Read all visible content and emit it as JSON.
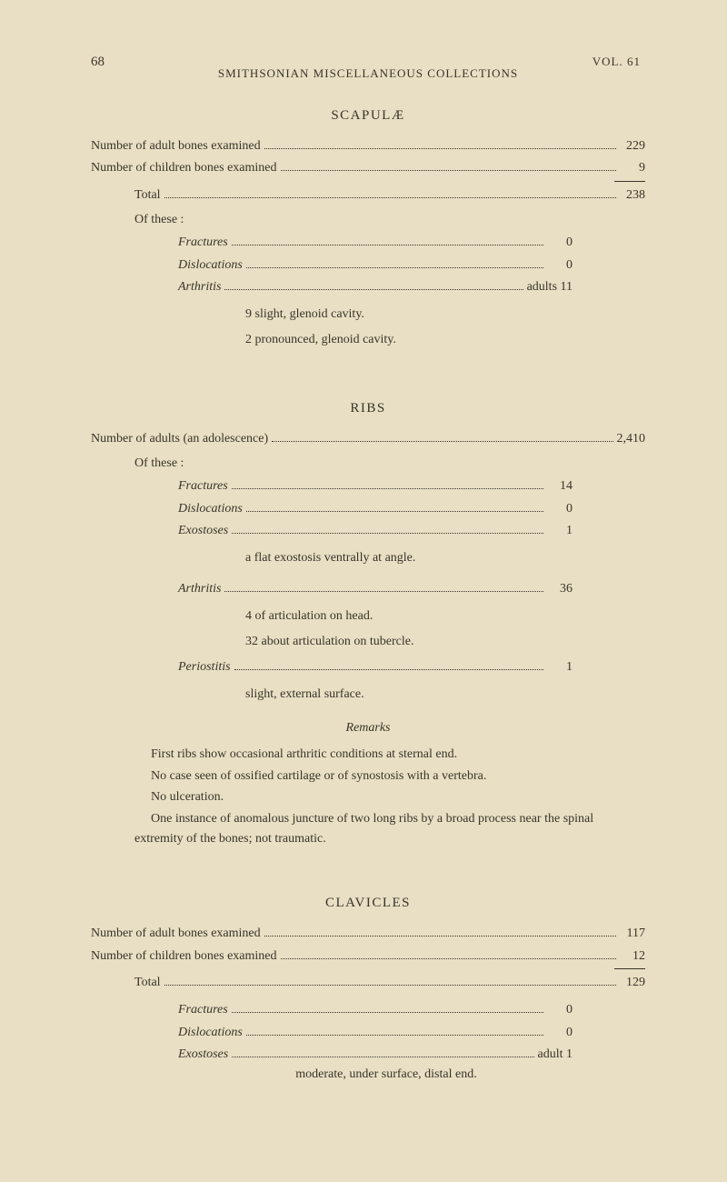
{
  "header": {
    "page_number": "68",
    "running_title": "SMITHSONIAN MISCELLANEOUS COLLECTIONS",
    "vol": "VOL. 61"
  },
  "scapulae": {
    "title": "SCAPULÆ",
    "adult_label": "Number of adult bones examined",
    "adult_value": "229",
    "children_label": "Number of children bones examined",
    "children_value": "9",
    "total_label": "Total",
    "total_value": "238",
    "of_these": "Of these :",
    "fractures_label": "Fractures",
    "fractures_value": "0",
    "dislocations_label": "Dislocations",
    "dislocations_value": "0",
    "arthritis_label": "Arthritis",
    "arthritis_value": "adults 11",
    "note1": "9 slight, glenoid cavity.",
    "note2": "2 pronounced, glenoid cavity."
  },
  "ribs": {
    "title": "RIBS",
    "adults_label": "Number of adults (an adolescence)",
    "adults_value": "2,410",
    "of_these": "Of these :",
    "fractures_label": "Fractures",
    "fractures_value": "14",
    "dislocations_label": "Dislocations",
    "dislocations_value": "0",
    "exostoses_label": "Exostoses",
    "exostoses_value": "1",
    "exostoses_note": "a flat exostosis ventrally at angle.",
    "arthritis_label": "Arthritis",
    "arthritis_value": "36",
    "arthritis_note1": "4 of articulation on head.",
    "arthritis_note2": "32 about articulation on tubercle.",
    "periostitis_label": "Periostitis",
    "periostitis_value": "1",
    "periostitis_note": "slight, external surface."
  },
  "remarks": {
    "title": "Remarks",
    "p1": "First ribs show occasional arthritic conditions at sternal end.",
    "p2": "No case seen of ossified cartilage or of synostosis with a vertebra.",
    "p3": "No ulceration.",
    "p4": "One instance of anomalous juncture of two long ribs by a broad process near the spinal extremity of the bones; not traumatic."
  },
  "clavicles": {
    "title": "CLAVICLES",
    "adult_label": "Number of adult bones examined",
    "adult_value": "117",
    "children_label": "Number of children bones examined",
    "children_value": "12",
    "total_label": "Total",
    "total_value": "129",
    "fractures_label": "Fractures",
    "fractures_value": "0",
    "dislocations_label": "Dislocations",
    "dislocations_value": "0",
    "exostoses_label": "Exostoses",
    "exostoses_value": "adult  1",
    "moderate_note": "moderate, under surface, distal end."
  }
}
